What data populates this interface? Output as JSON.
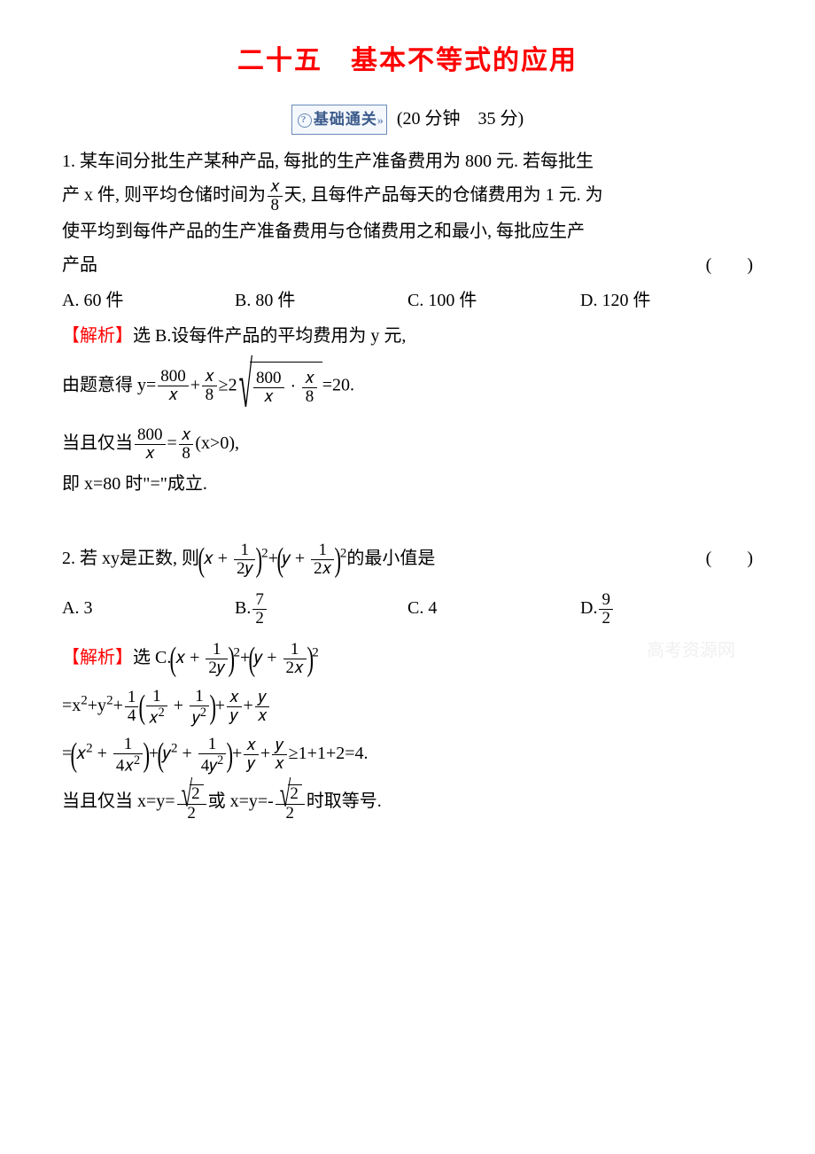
{
  "title": "二十五　基本不等式的应用",
  "badge_label": "基础通关",
  "timing": "(20 分钟　35 分)",
  "q1": {
    "stem1": "1. 某车间分批生产某种产品, 每批的生产准备费用为 800 元. 若每批生",
    "stem2_a": "产 x 件, 则平均仓储时间为",
    "stem2_b": "天, 且每件产品每天的仓储费用为 1 元. 为",
    "stem3": "使平均到每件产品的生产准备费用与仓储费用之和最小, 每批应生产",
    "stem4": "产品",
    "paren": "(　　)",
    "opts": {
      "A": "A. 60 件",
      "B": "B. 80 件",
      "C": "C. 100 件",
      "D": "D. 120 件"
    },
    "sol_label": "【解析】",
    "sol1": "选 B.设每件产品的平均费用为 y 元,",
    "sol2a": "由题意得 y=",
    "sol2b": "=20.",
    "sol3a": "当且仅当",
    "sol3b": "(x>0),",
    "sol4": "即 x=80 时\"=\"成立."
  },
  "q2": {
    "stem_a": "2. 若 xy是正数, 则",
    "stem_b": "的最小值是",
    "paren": "(　　)",
    "opts": {
      "A": "A. 3",
      "B": "B.",
      "C": "C. 4",
      "D": "D."
    },
    "sol_label": "【解析】",
    "sol1": "选 C.",
    "sol4a": "≥1+1+2=4.",
    "sol5a": "当且仅当 x=y=",
    "sol5b": "或 x=y=-",
    "sol5c": "时取等号."
  },
  "frac": {
    "x": "𝑥",
    "8": "8",
    "800": "800",
    "1": "1",
    "2": "2",
    "4": "4",
    "2y": "2𝑦",
    "2x": "2𝑥",
    "7": "7",
    "9": "9",
    "1x2": "𝑥",
    "1y2": "𝑦",
    "y": "𝑦",
    "x2": "𝑥",
    "y2": "𝑦",
    "4x2": "4𝑥",
    "4y2": "4𝑦",
    "sqrt2": "2"
  },
  "watermark": "高考资源网"
}
